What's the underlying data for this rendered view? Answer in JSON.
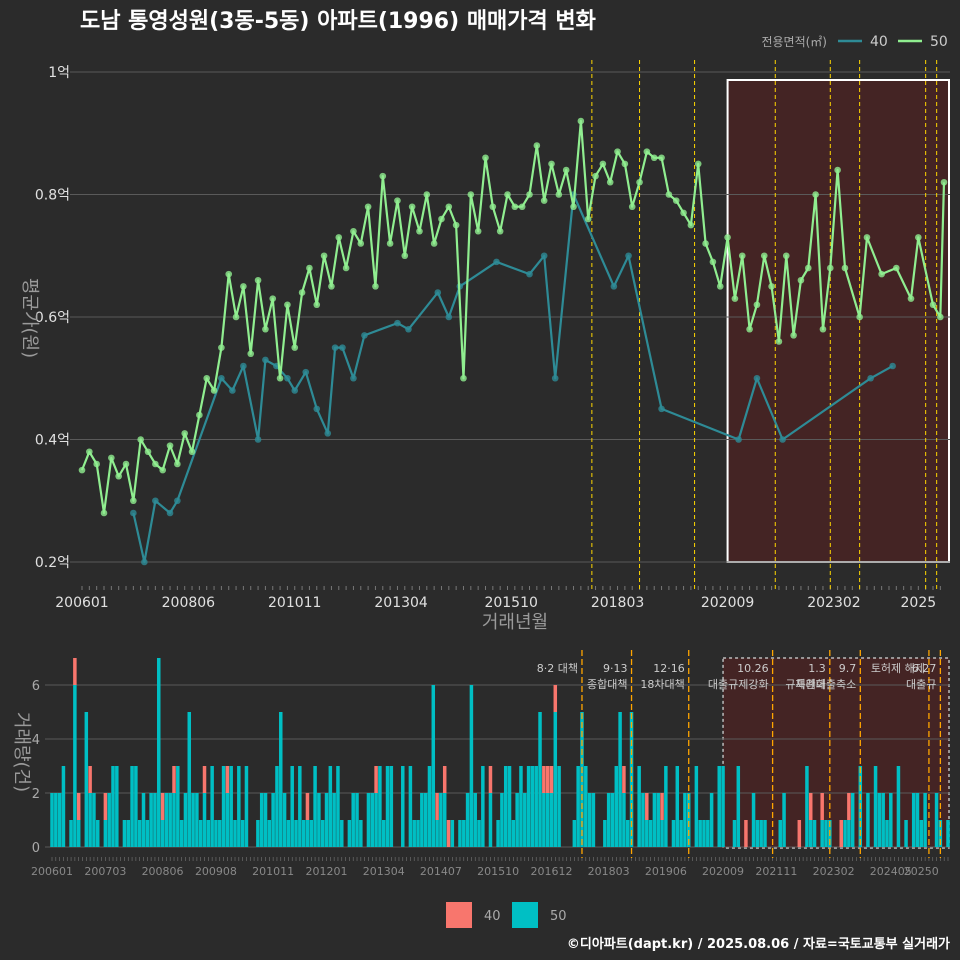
{
  "title": "도남 통영성원(3동-5동) 아파트(1996) 매매가격 변화",
  "footer": "©디아파트(dapt.kr) / 2025.08.06 / 자료=국토교통부 실거래가",
  "colors": {
    "background": "#2b2b2b",
    "grid": "#5a5a5a",
    "series40": "#2e8b96",
    "series50": "#90ee90",
    "bar40": "#f8766d",
    "bar50": "#00bfc4",
    "policy": "#ffd700",
    "recent_band": "#5a1f1f"
  },
  "chart_data": [
    {
      "type": "line",
      "title": "도남 통영성원(3동-5동) 아파트(1996) 매매가격 변화",
      "xlabel": "거래년월",
      "ylabel": "평균가(원)",
      "legend_title": "전용면적(㎡)",
      "legend_position": "top-right",
      "grid": true,
      "x_ticks": [
        "200601",
        "200806",
        "201011",
        "201304",
        "201510",
        "201803",
        "202009",
        "202302",
        "2025"
      ],
      "y_ticks": [
        "0.2억",
        "0.4억",
        "0.6억",
        "0.8억",
        "1억"
      ],
      "ylim": [
        0.17,
        1.02
      ],
      "series": [
        {
          "name": "40",
          "points": [
            [
              "2007-03",
              0.28
            ],
            [
              "2007-06",
              0.2
            ],
            [
              "2007-09",
              0.3
            ],
            [
              "2008-01",
              0.28
            ],
            [
              "2008-03",
              0.3
            ],
            [
              "2009-03",
              0.5
            ],
            [
              "2009-06",
              0.48
            ],
            [
              "2009-09",
              0.52
            ],
            [
              "2010-01",
              0.4
            ],
            [
              "2010-03",
              0.53
            ],
            [
              "2010-06",
              0.52
            ],
            [
              "2010-09",
              0.5
            ],
            [
              "2010-11",
              0.48
            ],
            [
              "2011-02",
              0.51
            ],
            [
              "2011-05",
              0.45
            ],
            [
              "2011-08",
              0.41
            ],
            [
              "2011-10",
              0.55
            ],
            [
              "2011-12",
              0.55
            ],
            [
              "2012-03",
              0.5
            ],
            [
              "2012-06",
              0.57
            ],
            [
              "2013-03",
              0.59
            ],
            [
              "2013-06",
              0.58
            ],
            [
              "2014-02",
              0.64
            ],
            [
              "2014-05",
              0.6
            ],
            [
              "2014-08",
              0.65
            ],
            [
              "2015-06",
              0.69
            ],
            [
              "2016-03",
              0.67
            ],
            [
              "2016-07",
              0.7
            ],
            [
              "2016-10",
              0.5
            ],
            [
              "2017-03",
              0.8
            ],
            [
              "2018-02",
              0.65
            ],
            [
              "2018-06",
              0.7
            ],
            [
              "2019-03",
              0.45
            ],
            [
              "2020-12",
              0.4
            ],
            [
              "2021-05",
              0.5
            ],
            [
              "2021-12",
              0.4
            ],
            [
              "2023-12",
              0.5
            ],
            [
              "2024-06",
              0.52
            ]
          ]
        },
        {
          "name": "50",
          "points": [
            [
              "2006-01",
              0.35
            ],
            [
              "2006-03",
              0.38
            ],
            [
              "2006-05",
              0.36
            ],
            [
              "2006-07",
              0.28
            ],
            [
              "2006-09",
              0.37
            ],
            [
              "2006-11",
              0.34
            ],
            [
              "2007-01",
              0.36
            ],
            [
              "2007-03",
              0.3
            ],
            [
              "2007-05",
              0.4
            ],
            [
              "2007-07",
              0.38
            ],
            [
              "2007-09",
              0.36
            ],
            [
              "2007-11",
              0.35
            ],
            [
              "2008-01",
              0.39
            ],
            [
              "2008-03",
              0.36
            ],
            [
              "2008-05",
              0.41
            ],
            [
              "2008-07",
              0.38
            ],
            [
              "2008-09",
              0.44
            ],
            [
              "2008-11",
              0.5
            ],
            [
              "2009-01",
              0.48
            ],
            [
              "2009-03",
              0.55
            ],
            [
              "2009-05",
              0.67
            ],
            [
              "2009-07",
              0.6
            ],
            [
              "2009-09",
              0.65
            ],
            [
              "2009-11",
              0.54
            ],
            [
              "2010-01",
              0.66
            ],
            [
              "2010-03",
              0.58
            ],
            [
              "2010-05",
              0.63
            ],
            [
              "2010-07",
              0.5
            ],
            [
              "2010-09",
              0.62
            ],
            [
              "2010-11",
              0.55
            ],
            [
              "2011-01",
              0.64
            ],
            [
              "2011-03",
              0.68
            ],
            [
              "2011-05",
              0.62
            ],
            [
              "2011-07",
              0.7
            ],
            [
              "2011-09",
              0.65
            ],
            [
              "2011-11",
              0.73
            ],
            [
              "2012-01",
              0.68
            ],
            [
              "2012-03",
              0.74
            ],
            [
              "2012-05",
              0.72
            ],
            [
              "2012-07",
              0.78
            ],
            [
              "2012-09",
              0.65
            ],
            [
              "2012-11",
              0.83
            ],
            [
              "2013-01",
              0.72
            ],
            [
              "2013-03",
              0.79
            ],
            [
              "2013-05",
              0.7
            ],
            [
              "2013-07",
              0.78
            ],
            [
              "2013-09",
              0.74
            ],
            [
              "2013-11",
              0.8
            ],
            [
              "2014-01",
              0.72
            ],
            [
              "2014-03",
              0.76
            ],
            [
              "2014-05",
              0.78
            ],
            [
              "2014-07",
              0.75
            ],
            [
              "2014-09",
              0.5
            ],
            [
              "2014-11",
              0.8
            ],
            [
              "2015-01",
              0.74
            ],
            [
              "2015-03",
              0.86
            ],
            [
              "2015-05",
              0.78
            ],
            [
              "2015-07",
              0.74
            ],
            [
              "2015-09",
              0.8
            ],
            [
              "2015-11",
              0.78
            ],
            [
              "2016-01",
              0.78
            ],
            [
              "2016-03",
              0.8
            ],
            [
              "2016-05",
              0.88
            ],
            [
              "2016-07",
              0.79
            ],
            [
              "2016-09",
              0.85
            ],
            [
              "2016-11",
              0.8
            ],
            [
              "2017-01",
              0.84
            ],
            [
              "2017-03",
              0.78
            ],
            [
              "2017-05",
              0.92
            ],
            [
              "2017-07",
              0.76
            ],
            [
              "2017-09",
              0.83
            ],
            [
              "2017-11",
              0.85
            ],
            [
              "2018-01",
              0.82
            ],
            [
              "2018-03",
              0.87
            ],
            [
              "2018-05",
              0.85
            ],
            [
              "2018-07",
              0.78
            ],
            [
              "2018-09",
              0.82
            ],
            [
              "2018-11",
              0.87
            ],
            [
              "2019-01",
              0.86
            ],
            [
              "2019-03",
              0.86
            ],
            [
              "2019-05",
              0.8
            ],
            [
              "2019-07",
              0.79
            ],
            [
              "2019-09",
              0.77
            ],
            [
              "2019-11",
              0.75
            ],
            [
              "2020-01",
              0.85
            ],
            [
              "2020-03",
              0.72
            ],
            [
              "2020-05",
              0.69
            ],
            [
              "2020-07",
              0.65
            ],
            [
              "2020-09",
              0.73
            ],
            [
              "2020-11",
              0.63
            ],
            [
              "2021-01",
              0.7
            ],
            [
              "2021-03",
              0.58
            ],
            [
              "2021-05",
              0.62
            ],
            [
              "2021-07",
              0.7
            ],
            [
              "2021-09",
              0.65
            ],
            [
              "2021-11",
              0.56
            ],
            [
              "2022-01",
              0.7
            ],
            [
              "2022-03",
              0.57
            ],
            [
              "2022-05",
              0.66
            ],
            [
              "2022-07",
              0.68
            ],
            [
              "2022-09",
              0.8
            ],
            [
              "2022-11",
              0.58
            ],
            [
              "2023-01",
              0.68
            ],
            [
              "2023-03",
              0.84
            ],
            [
              "2023-05",
              0.68
            ],
            [
              "2023-09",
              0.6
            ],
            [
              "2023-11",
              0.73
            ],
            [
              "2024-03",
              0.67
            ],
            [
              "2024-07",
              0.68
            ],
            [
              "2024-11",
              0.63
            ],
            [
              "2025-01",
              0.73
            ],
            [
              "2025-05",
              0.62
            ],
            [
              "2025-07",
              0.6
            ],
            [
              "2025-08",
              0.82
            ]
          ]
        }
      ],
      "policy_lines": [
        "2017-08",
        "2018-09",
        "2019-12",
        "2021-10",
        "2023-01",
        "2023-09",
        "2025-03",
        "2025-06"
      ],
      "highlight_range": [
        "2020-09",
        "2025-08"
      ]
    },
    {
      "type": "bar",
      "xlabel": "",
      "ylabel": "거래량(건)",
      "x_ticks": [
        "200601",
        "200703",
        "200806",
        "200908",
        "201011",
        "201201",
        "201304",
        "201407",
        "201510",
        "201612",
        "201803",
        "201906",
        "202009",
        "202111",
        "202302",
        "202405",
        "20250"
      ],
      "y_ticks": [
        "0",
        "2",
        "4",
        "6"
      ],
      "ylim": [
        0,
        7
      ],
      "legend": [
        "40",
        "50"
      ],
      "legend_position": "bottom",
      "policy_annotations": [
        {
          "date": "2017-08",
          "label": "8·2 대책"
        },
        {
          "date": "2018-09",
          "label": "9·13\n종합대책"
        },
        {
          "date": "2019-12",
          "label": "12·16\n18차대책"
        },
        {
          "date": "2021-10",
          "label": "10.26\n대출규제강화"
        },
        {
          "date": "2023-01",
          "label": "1.3\n규제완화"
        },
        {
          "date": "2023-09",
          "label": "9.7\n특례대출축소"
        },
        {
          "date": "2025-03",
          "label": "토허제 해제"
        },
        {
          "date": "2025-06",
          "label": "6.27\n대출규"
        }
      ],
      "series": [
        {
          "name": "40",
          "monthly_counts": "sparse: mostly 0-1 per month, small red segments scattered 2006-2025"
        },
        {
          "name": "50",
          "monthly_counts": "mostly 1-3 per month 2006-2019, peak 7 in 2008-05; 0-3 after 2020"
        }
      ]
    }
  ]
}
